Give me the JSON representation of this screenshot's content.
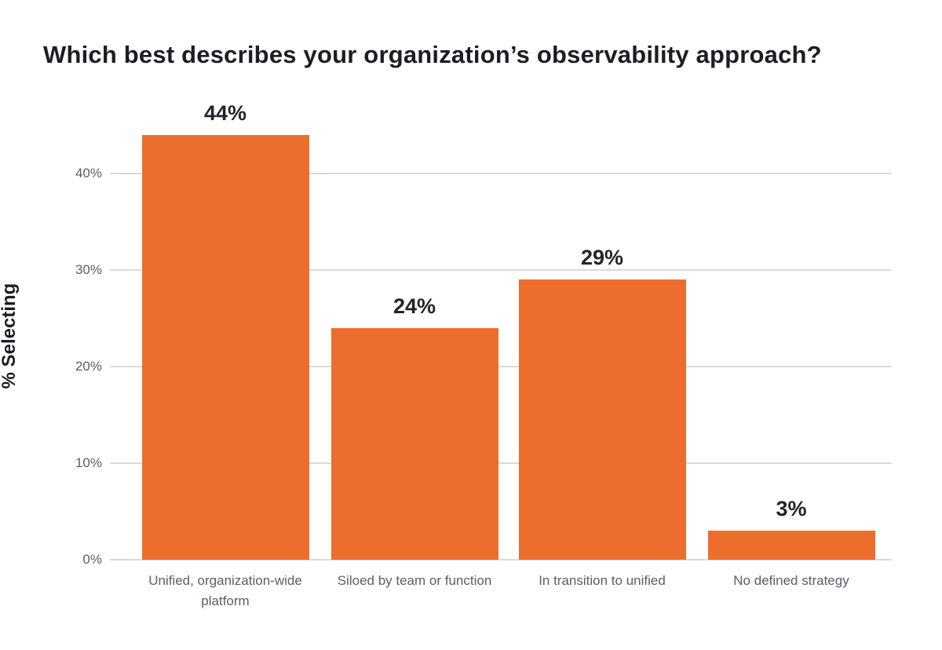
{
  "chart_data": {
    "type": "bar",
    "title": "Which best describes your organization’s observability approach?",
    "xlabel": "",
    "ylabel": "% Selecting",
    "categories": [
      "Unified, organization-wide platform",
      "Siloed by team or function",
      "In transition to unified",
      "No defined strategy"
    ],
    "values": [
      44,
      24,
      29,
      3
    ],
    "data_labels": [
      "44%",
      "24%",
      "29%",
      "3%"
    ],
    "yticks": [
      "0%",
      "10%",
      "20%",
      "30%",
      "40%"
    ],
    "ytick_values": [
      0,
      10,
      20,
      30,
      40
    ],
    "ylim": [
      0,
      48
    ],
    "grid": "horizontal",
    "legend": "none",
    "bar_color": "#ED6D2D",
    "gridline_color": "#d9d9d9",
    "title_color": "#1d1d26",
    "tick_label_color": "#5c5c6c"
  }
}
